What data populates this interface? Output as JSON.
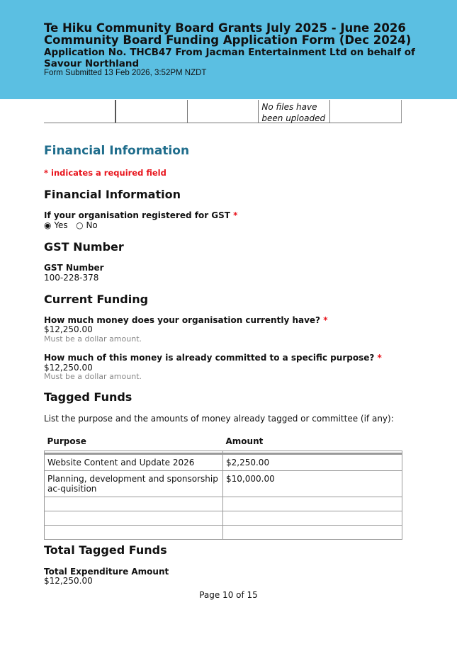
{
  "header": {
    "title1": "Te Hiku Community Board Grants July 2025 - June 2026",
    "title2": "Community Board Funding Application Form (Dec 2024)",
    "application": "Application No. THCB47 From Jacman Entertainment Ltd on behalf of Savour Northland",
    "submitted": "Form Submitted 13 Feb 2026, 3:52PM NZDT",
    "color": "#5bbfe2"
  },
  "file_table": {
    "cells": [
      "",
      "",
      "",
      "No files have been uploaded",
      ""
    ]
  },
  "section_title": "Financial Information",
  "required_note": "* indicates a required field",
  "financial": {
    "heading": "Financial Information",
    "gst_question": "If your organisation registered for GST",
    "star": "*",
    "options": [
      {
        "label": "Yes",
        "selected": true
      },
      {
        "label": "No",
        "selected": false
      }
    ],
    "radio_on": "◉",
    "radio_off": "○"
  },
  "gst": {
    "heading": "GST Number",
    "label": "GST Number",
    "value": "100-228-378"
  },
  "current": {
    "heading": "Current Funding",
    "q1": "How much money does your organisation currently have?",
    "a1": "$12,250.00",
    "h1": "Must be a dollar amount.",
    "q2": "How much of this money is already committed to a specific purpose?",
    "a2": "$12,250.00",
    "h2": "Must be a dollar amount."
  },
  "tagged": {
    "heading": "Tagged Funds",
    "desc": "List the purpose and the amounts of money already tagged or committee (if any):",
    "columns": [
      "Purpose",
      "Amount"
    ],
    "rows": [
      [
        "Website Content and Update 2026",
        "$2,250.00"
      ],
      [
        "Planning, development and sponsorship ac-quisition",
        "$10,000.00"
      ],
      [
        "",
        ""
      ],
      [
        "",
        ""
      ],
      [
        "",
        ""
      ]
    ]
  },
  "total": {
    "heading": "Total Tagged Funds",
    "label": "Total Expenditure Amount",
    "value": "$12,250.00"
  },
  "footer": "Page 10 of 15"
}
